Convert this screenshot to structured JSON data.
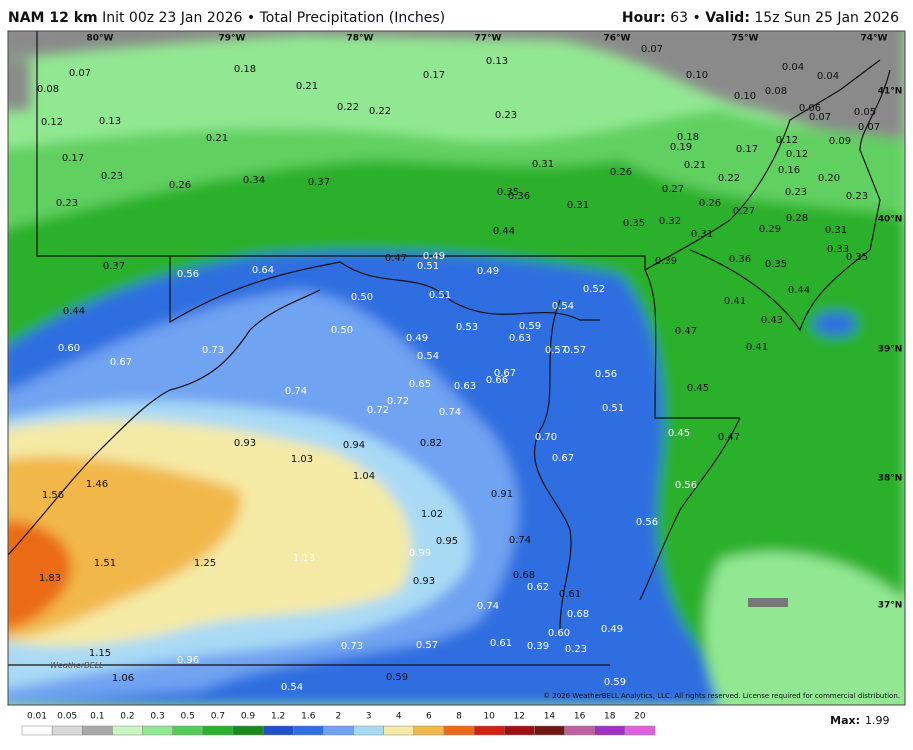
{
  "header": {
    "model": "NAM 12 km",
    "init": "Init 00z 23 Jan 2026",
    "separator": "•",
    "product": "Total Precipitation (Inches)",
    "hour_label": "Hour:",
    "hour": "63",
    "valid_label": "Valid:",
    "valid": "15z Sun 25 Jan 2026"
  },
  "longitudes": [
    "80°W",
    "79°W",
    "78°W",
    "77°W",
    "76°W",
    "75°W",
    "74°W"
  ],
  "latitudes": [
    "41°N",
    "40°N",
    "39°N",
    "38°N",
    "37°N"
  ],
  "labels": [
    "0.07",
    "0.08",
    "0.18",
    "0.21",
    "0.17",
    "0.13",
    "0.07",
    "0.10",
    "0.04",
    "0.04",
    "0.10",
    "0.08",
    "0.06",
    "0.07",
    "0.05",
    "0.12",
    "0.13",
    "0.22",
    "0.22",
    "0.23",
    "0.07",
    "0.21",
    "0.18",
    "0.19",
    "0.17",
    "0.12",
    "0.12",
    "0.09",
    "0.17",
    "0.23",
    "0.26",
    "0.34",
    "0.37",
    "0.31",
    "0.26",
    "0.21",
    "0.16",
    "0.22",
    "0.20",
    "0.23",
    "0.35",
    "0.36",
    "0.31",
    "0.27",
    "0.26",
    "0.23",
    "0.23",
    "0.27",
    "0.28",
    "0.35",
    "0.32",
    "0.44",
    "0.31",
    "0.29",
    "0.31",
    "0.33",
    "0.35",
    "0.37",
    "0.56",
    "0.64",
    "0.47",
    "0.49",
    "0.51",
    "0.49",
    "0.39",
    "0.36",
    "0.35",
    "0.52",
    "0.50",
    "0.51",
    "0.54",
    "0.41",
    "0.44",
    "0.44",
    "0.59",
    "0.53",
    "0.50",
    "0.63",
    "0.47",
    "0.43",
    "0.49",
    "0.60",
    "0.73",
    "0.57",
    "0.57",
    "0.41",
    "0.54",
    "0.67",
    "0.67",
    "0.56",
    "0.65",
    "0.63",
    "0.66",
    "0.74",
    "0.72",
    "0.72",
    "0.51",
    "0.45",
    "0.74",
    "0.93",
    "0.94",
    "0.82",
    "0.70",
    "0.45",
    "0.47",
    "1.03",
    "0.67",
    "1.04",
    "1.46",
    "1.56",
    "0.91",
    "0.56",
    "1.02",
    "0.56",
    "0.95",
    "0.74",
    "0.99",
    "1.13",
    "1.51",
    "1.25",
    "1.83",
    "0.68",
    "0.93",
    "0.62",
    "0.61",
    "0.74",
    "0.68",
    "0.49",
    "0.60",
    "0.61",
    "0.73",
    "0.57",
    "0.39",
    "0.23",
    "1.15",
    "0.96",
    "1.06",
    "0.59",
    "0.59",
    "0.54"
  ],
  "scale": [
    "0.01",
    "0.05",
    "0.1",
    "0.2",
    "0.3",
    "0.5",
    "0.7",
    "0.9",
    "1.2",
    "1.6",
    "2",
    "3",
    "4",
    "6",
    "8",
    "10",
    "12",
    "14",
    "16",
    "18",
    "20"
  ],
  "max_label": "Max:",
  "max": "1.99",
  "copyright": "© 2026 WeatherBELL Analytics, LLC. All rights reserved. License required for commercial distribution.",
  "logo": "WeatherBELL"
}
